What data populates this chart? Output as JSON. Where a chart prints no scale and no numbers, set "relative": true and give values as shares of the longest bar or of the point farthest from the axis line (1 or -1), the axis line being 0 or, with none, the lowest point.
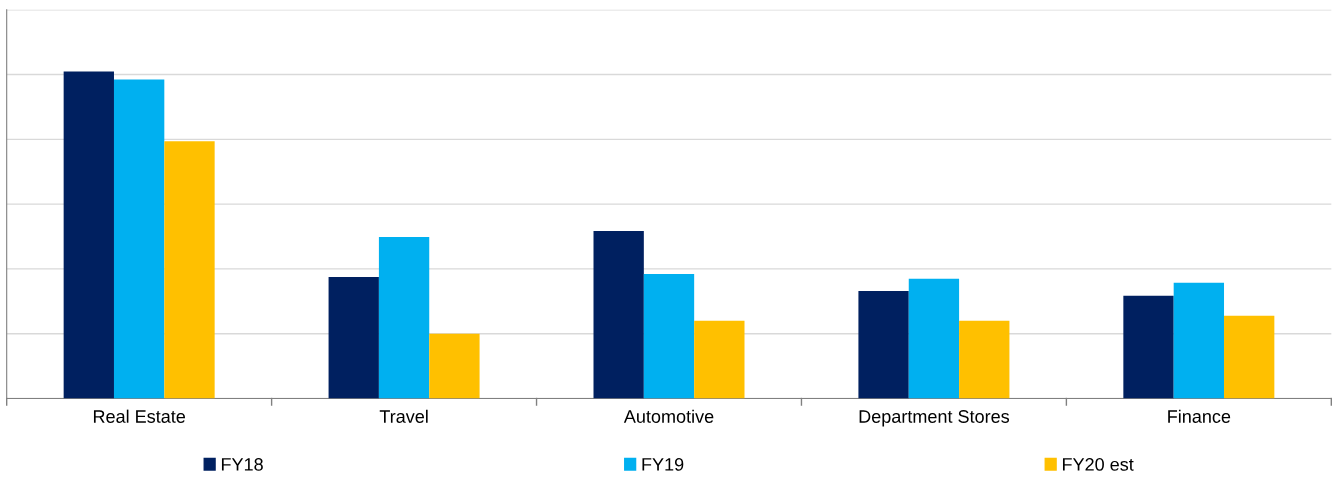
{
  "chart_data": {
    "type": "bar",
    "relative": true,
    "categories": [
      "Real Estate",
      "Travel",
      "Automotive",
      "Department Stores",
      "Finance"
    ],
    "series": [
      {
        "name": "FY18",
        "color": "#002060",
        "values": [
          1,
          0.372,
          0.512,
          0.329,
          0.314
        ]
      },
      {
        "name": "FY19",
        "color": "#00b0f0",
        "values": [
          0.976,
          0.494,
          0.381,
          0.366,
          0.354
        ]
      },
      {
        "name": "FY20 est",
        "color": "#ffc000",
        "values": [
          0.787,
          0.198,
          0.238,
          0.238,
          0.253
        ]
      }
    ],
    "grid": "y",
    "legend": "bottom",
    "tick_labels": "x"
  }
}
